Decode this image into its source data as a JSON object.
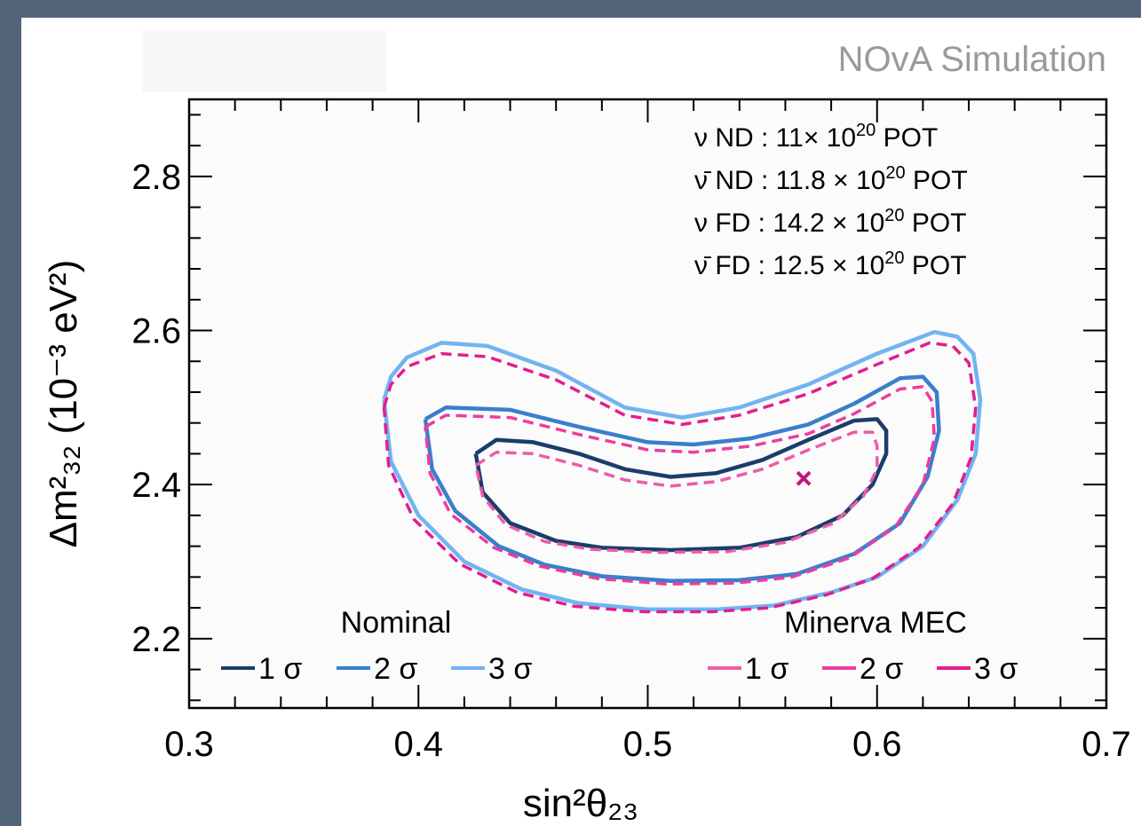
{
  "chart_data": {
    "type": "contour",
    "header": "NOvA Simulation",
    "xlabel": "sin²θ₂₃",
    "ylabel": "Δm²₃₂ (10⁻³ eV²)",
    "xlim": [
      0.3,
      0.7
    ],
    "ylim": [
      2.11,
      2.9
    ],
    "x_tick_labels": [
      "0.3",
      "0.4",
      "0.5",
      "0.6",
      "0.7"
    ],
    "x_ticks": [
      0.3,
      0.4,
      0.5,
      0.6,
      0.7
    ],
    "y_tick_labels": [
      "2.2",
      "2.4",
      "2.6",
      "2.8"
    ],
    "y_ticks": [
      2.2,
      2.4,
      2.6,
      2.8
    ],
    "exposure": [
      {
        "prefix": "ν ND : 11× 10",
        "exp": "20",
        "suffix": " POT"
      },
      {
        "prefix": "ν̄ ND : 11.8 × 10",
        "exp": "20",
        "suffix": " POT"
      },
      {
        "prefix": "ν FD : 14.2 × 10",
        "exp": "20",
        "suffix": " POT"
      },
      {
        "prefix": "ν̄ FD : 12.5 × 10",
        "exp": "20",
        "suffix": " POT"
      }
    ],
    "best_fit": {
      "x": 0.568,
      "y": 2.408,
      "color": "#c0187a"
    },
    "legend": {
      "groups": [
        {
          "name": "Nominal",
          "entries": [
            "1 σ",
            "2 σ",
            "3 σ"
          ],
          "colors": [
            "#1b3d6b",
            "#3a7fcc",
            "#72b4f2"
          ],
          "dashed": false
        },
        {
          "name": "Minerva MEC",
          "entries": [
            "1 σ",
            "2 σ",
            "3 σ"
          ],
          "colors": [
            "#ee5ca6",
            "#ec3da0",
            "#e21e8e"
          ],
          "dashed": true
        }
      ]
    },
    "series": [
      {
        "name": "Nominal 1 σ",
        "color": "#1b3d6b",
        "dashed": false,
        "points": [
          [
            0.425,
            2.44
          ],
          [
            0.434,
            2.458
          ],
          [
            0.45,
            2.455
          ],
          [
            0.47,
            2.44
          ],
          [
            0.49,
            2.42
          ],
          [
            0.51,
            2.41
          ],
          [
            0.53,
            2.415
          ],
          [
            0.55,
            2.432
          ],
          [
            0.57,
            2.458
          ],
          [
            0.59,
            2.483
          ],
          [
            0.6,
            2.485
          ],
          [
            0.604,
            2.47
          ],
          [
            0.604,
            2.44
          ],
          [
            0.598,
            2.4
          ],
          [
            0.585,
            2.36
          ],
          [
            0.565,
            2.332
          ],
          [
            0.54,
            2.318
          ],
          [
            0.51,
            2.315
          ],
          [
            0.48,
            2.318
          ],
          [
            0.46,
            2.327
          ],
          [
            0.44,
            2.35
          ],
          [
            0.428,
            2.39
          ],
          [
            0.425,
            2.44
          ]
        ]
      },
      {
        "name": "Nominal 2 σ",
        "color": "#3a7fcc",
        "dashed": false,
        "points": [
          [
            0.403,
            2.485
          ],
          [
            0.412,
            2.5
          ],
          [
            0.44,
            2.497
          ],
          [
            0.47,
            2.475
          ],
          [
            0.5,
            2.455
          ],
          [
            0.52,
            2.452
          ],
          [
            0.545,
            2.46
          ],
          [
            0.57,
            2.478
          ],
          [
            0.59,
            2.505
          ],
          [
            0.61,
            2.538
          ],
          [
            0.62,
            2.54
          ],
          [
            0.626,
            2.52
          ],
          [
            0.627,
            2.47
          ],
          [
            0.622,
            2.41
          ],
          [
            0.61,
            2.35
          ],
          [
            0.59,
            2.31
          ],
          [
            0.565,
            2.284
          ],
          [
            0.54,
            2.276
          ],
          [
            0.51,
            2.275
          ],
          [
            0.48,
            2.281
          ],
          [
            0.455,
            2.296
          ],
          [
            0.435,
            2.32
          ],
          [
            0.416,
            2.366
          ],
          [
            0.406,
            2.42
          ],
          [
            0.403,
            2.485
          ]
        ]
      },
      {
        "name": "Nominal 3 σ",
        "color": "#72b4f2",
        "dashed": false,
        "points": [
          [
            0.385,
            2.51
          ],
          [
            0.388,
            2.54
          ],
          [
            0.395,
            2.565
          ],
          [
            0.41,
            2.584
          ],
          [
            0.43,
            2.58
          ],
          [
            0.46,
            2.548
          ],
          [
            0.49,
            2.5
          ],
          [
            0.515,
            2.487
          ],
          [
            0.54,
            2.5
          ],
          [
            0.57,
            2.53
          ],
          [
            0.6,
            2.57
          ],
          [
            0.625,
            2.598
          ],
          [
            0.635,
            2.592
          ],
          [
            0.642,
            2.57
          ],
          [
            0.645,
            2.51
          ],
          [
            0.643,
            2.44
          ],
          [
            0.635,
            2.38
          ],
          [
            0.62,
            2.32
          ],
          [
            0.6,
            2.28
          ],
          [
            0.58,
            2.26
          ],
          [
            0.555,
            2.243
          ],
          [
            0.53,
            2.238
          ],
          [
            0.5,
            2.238
          ],
          [
            0.47,
            2.246
          ],
          [
            0.445,
            2.264
          ],
          [
            0.42,
            2.3
          ],
          [
            0.4,
            2.36
          ],
          [
            0.388,
            2.43
          ],
          [
            0.385,
            2.51
          ]
        ]
      },
      {
        "name": "Minerva MEC 1 σ",
        "color": "#ee5ca6",
        "dashed": true,
        "points": [
          [
            0.425,
            2.425
          ],
          [
            0.434,
            2.442
          ],
          [
            0.45,
            2.44
          ],
          [
            0.47,
            2.425
          ],
          [
            0.49,
            2.406
          ],
          [
            0.51,
            2.398
          ],
          [
            0.53,
            2.404
          ],
          [
            0.55,
            2.42
          ],
          [
            0.57,
            2.445
          ],
          [
            0.59,
            2.468
          ],
          [
            0.598,
            2.468
          ],
          [
            0.6,
            2.45
          ],
          [
            0.6,
            2.42
          ],
          [
            0.594,
            2.385
          ],
          [
            0.581,
            2.35
          ],
          [
            0.56,
            2.325
          ],
          [
            0.535,
            2.313
          ],
          [
            0.505,
            2.312
          ],
          [
            0.475,
            2.316
          ],
          [
            0.455,
            2.326
          ],
          [
            0.438,
            2.348
          ],
          [
            0.428,
            2.385
          ],
          [
            0.425,
            2.425
          ]
        ]
      },
      {
        "name": "Minerva MEC 2 σ",
        "color": "#ec3da0",
        "dashed": true,
        "points": [
          [
            0.403,
            2.475
          ],
          [
            0.412,
            2.49
          ],
          [
            0.44,
            2.487
          ],
          [
            0.47,
            2.465
          ],
          [
            0.5,
            2.445
          ],
          [
            0.52,
            2.442
          ],
          [
            0.545,
            2.45
          ],
          [
            0.57,
            2.466
          ],
          [
            0.59,
            2.492
          ],
          [
            0.61,
            2.524
          ],
          [
            0.62,
            2.527
          ],
          [
            0.624,
            2.508
          ],
          [
            0.625,
            2.46
          ],
          [
            0.62,
            2.4
          ],
          [
            0.608,
            2.345
          ],
          [
            0.588,
            2.305
          ],
          [
            0.563,
            2.28
          ],
          [
            0.538,
            2.272
          ],
          [
            0.508,
            2.271
          ],
          [
            0.478,
            2.278
          ],
          [
            0.453,
            2.294
          ],
          [
            0.433,
            2.318
          ],
          [
            0.414,
            2.362
          ],
          [
            0.405,
            2.415
          ],
          [
            0.403,
            2.475
          ]
        ]
      },
      {
        "name": "Minerva MEC 3 σ",
        "color": "#e21e8e",
        "dashed": true,
        "points": [
          [
            0.385,
            2.5
          ],
          [
            0.388,
            2.53
          ],
          [
            0.395,
            2.553
          ],
          [
            0.41,
            2.57
          ],
          [
            0.43,
            2.566
          ],
          [
            0.46,
            2.536
          ],
          [
            0.49,
            2.49
          ],
          [
            0.515,
            2.478
          ],
          [
            0.54,
            2.49
          ],
          [
            0.57,
            2.518
          ],
          [
            0.6,
            2.556
          ],
          [
            0.623,
            2.584
          ],
          [
            0.633,
            2.58
          ],
          [
            0.64,
            2.558
          ],
          [
            0.643,
            2.5
          ],
          [
            0.641,
            2.435
          ],
          [
            0.633,
            2.375
          ],
          [
            0.618,
            2.318
          ],
          [
            0.598,
            2.278
          ],
          [
            0.578,
            2.257
          ],
          [
            0.553,
            2.24
          ],
          [
            0.528,
            2.235
          ],
          [
            0.498,
            2.235
          ],
          [
            0.468,
            2.242
          ],
          [
            0.443,
            2.26
          ],
          [
            0.418,
            2.297
          ],
          [
            0.398,
            2.355
          ],
          [
            0.387,
            2.425
          ],
          [
            0.385,
            2.5
          ]
        ]
      }
    ]
  }
}
